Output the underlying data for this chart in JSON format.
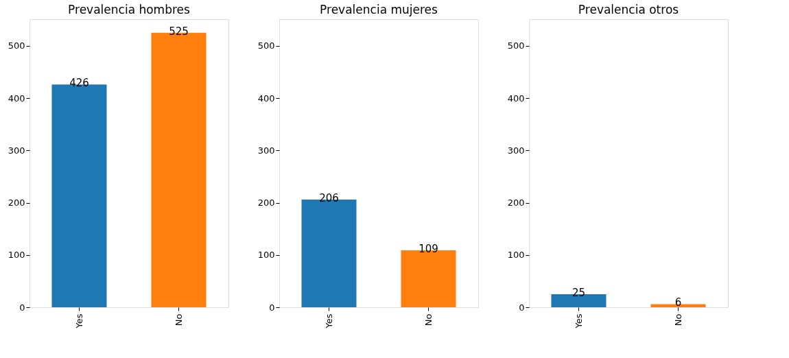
{
  "chart_data": [
    {
      "type": "bar",
      "title": "Prevalencia hombres",
      "categories": [
        "Yes",
        "No"
      ],
      "values": [
        426,
        525
      ],
      "colors": [
        "#1f77b4",
        "#ff7f0e"
      ],
      "ylim": [
        0,
        551
      ],
      "yticks": [
        0,
        100,
        200,
        300,
        400,
        500
      ],
      "data_labels": true,
      "grid": false
    },
    {
      "type": "bar",
      "title": "Prevalencia mujeres",
      "categories": [
        "Yes",
        "No"
      ],
      "values": [
        206,
        109
      ],
      "colors": [
        "#1f77b4",
        "#ff7f0e"
      ],
      "ylim": [
        0,
        551
      ],
      "yticks": [
        0,
        100,
        200,
        300,
        400,
        500
      ],
      "data_labels": true,
      "grid": false
    },
    {
      "type": "bar",
      "title": "Prevalencia otros",
      "categories": [
        "Yes",
        "No"
      ],
      "values": [
        25,
        6
      ],
      "colors": [
        "#1f77b4",
        "#ff7f0e"
      ],
      "ylim": [
        0,
        551
      ],
      "yticks": [
        0,
        100,
        200,
        300,
        400,
        500
      ],
      "data_labels": true,
      "grid": false
    }
  ]
}
